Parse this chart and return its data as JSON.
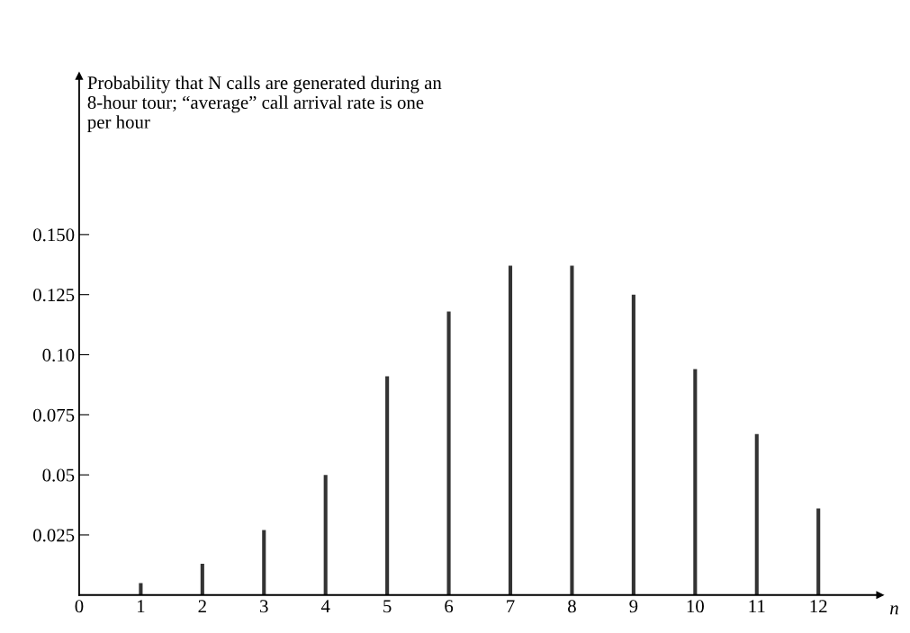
{
  "chart_data": {
    "type": "bar",
    "title": "Probability that N calls are generated during an\n8-hour tour; “average” call arrival rate is one\nper hour",
    "xlabel": "n",
    "x": [
      1,
      2,
      3,
      4,
      5,
      6,
      7,
      8,
      9,
      10,
      11,
      12
    ],
    "values": [
      0.005,
      0.013,
      0.027,
      0.05,
      0.091,
      0.118,
      0.137,
      0.137,
      0.125,
      0.094,
      0.067,
      0.036
    ],
    "color": "#333333",
    "xlim": [
      0,
      13
    ],
    "xticks": [
      0,
      1,
      2,
      3,
      4,
      5,
      6,
      7,
      8,
      9,
      10,
      11,
      12
    ],
    "ylim": [
      0,
      0.216
    ],
    "yticks": [
      0.025,
      {
        "value": 0.05,
        "label": "0.05"
      },
      0.075,
      {
        "value": 0.1,
        "label": "0.10"
      },
      0.125,
      {
        "value": 0.15,
        "label": "0.150"
      }
    ],
    "grid": false,
    "legend": false
  }
}
